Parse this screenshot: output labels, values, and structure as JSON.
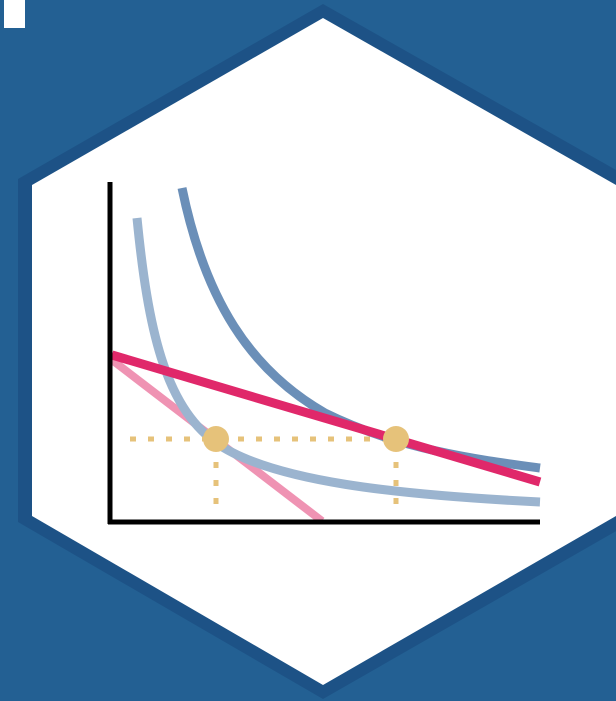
{
  "logo": {
    "colors": {
      "background": "#236093",
      "hex_border": "#1d5286",
      "hex_fill": "#ffffff",
      "axes": "#000000",
      "indifference_curve_low": "#9bb4cf",
      "indifference_curve_high": "#6b8fb8",
      "budget_line_initial": "#ef93b3",
      "budget_line_new": "#e0286a",
      "guide_lines": "#e6c27a",
      "optimum_points": "#e6c27a",
      "corner_mark": "#ffffff"
    }
  }
}
